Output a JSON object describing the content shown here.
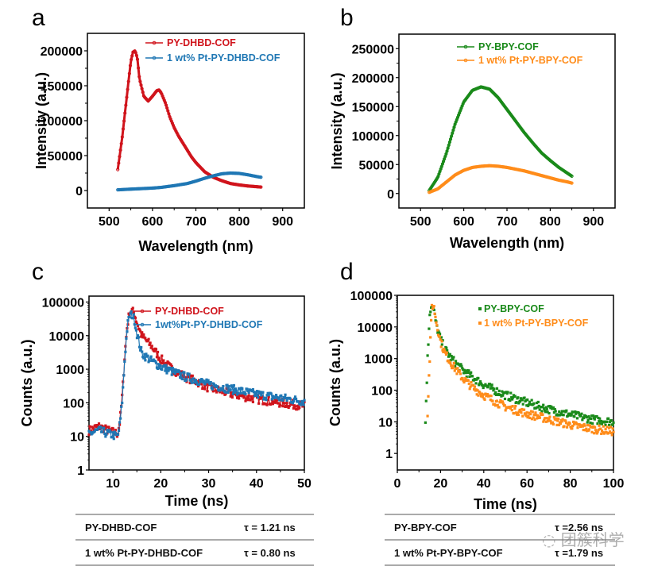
{
  "panels": {
    "a": {
      "letter": "a"
    },
    "b": {
      "letter": "b"
    },
    "c": {
      "letter": "c"
    },
    "d": {
      "letter": "d"
    }
  },
  "chart_data": [
    {
      "id": "a",
      "type": "line",
      "title": "",
      "xlabel": "Wavelength (nm)",
      "ylabel": "Intensity (a.u.)",
      "xlim": [
        450,
        950
      ],
      "ylim": [
        -25000,
        225000
      ],
      "xticks": [
        500,
        600,
        700,
        800,
        900
      ],
      "xtick_labels": [
        "500",
        "600",
        "700",
        "800",
        "900"
      ],
      "yticks": [
        0,
        50000,
        100000,
        150000,
        200000
      ],
      "ytick_labels": [
        "0",
        "50000",
        "100000",
        "150000",
        "200000"
      ],
      "legend_position": "top-right",
      "series": [
        {
          "name": "PY-DHBD-COF",
          "color": "#d0141c",
          "x": [
            520,
            530,
            540,
            550,
            555,
            560,
            565,
            570,
            580,
            590,
            600,
            610,
            615,
            620,
            630,
            640,
            650,
            660,
            670,
            680,
            690,
            700,
            720,
            740,
            760,
            780,
            800,
            820,
            840,
            850
          ],
          "y": [
            30000,
            75000,
            130000,
            185000,
            198000,
            200000,
            190000,
            160000,
            135000,
            128000,
            135000,
            143000,
            144000,
            140000,
            125000,
            105000,
            90000,
            78000,
            68000,
            58000,
            48000,
            40000,
            27000,
            19000,
            14000,
            10000,
            8000,
            6500,
            5500,
            5000
          ]
        },
        {
          "name": "1 wt% Pt-PY-DHBD-COF",
          "color": "#1f77b4",
          "x": [
            520,
            550,
            600,
            620,
            650,
            680,
            700,
            720,
            740,
            760,
            780,
            800,
            820,
            840,
            850
          ],
          "y": [
            1000,
            2000,
            3500,
            4500,
            7000,
            10000,
            13500,
            17500,
            21000,
            24000,
            25000,
            24500,
            22500,
            20000,
            19000
          ]
        }
      ]
    },
    {
      "id": "b",
      "type": "line",
      "title": "",
      "xlabel": "Wavelength (nm)",
      "ylabel": "Intensity (a.u.)",
      "xlim": [
        450,
        950
      ],
      "ylim": [
        -25000,
        275000
      ],
      "xticks": [
        500,
        600,
        700,
        800,
        900
      ],
      "xtick_labels": [
        "500",
        "600",
        "700",
        "800",
        "900"
      ],
      "yticks": [
        0,
        50000,
        100000,
        150000,
        200000,
        250000
      ],
      "ytick_labels": [
        "0",
        "50000",
        "100000",
        "150000",
        "200000",
        "250000"
      ],
      "legend_position": "top-right",
      "series": [
        {
          "name": "PY-BPY-COF",
          "color": "#1a8a1a",
          "x": [
            520,
            540,
            560,
            580,
            600,
            620,
            640,
            660,
            680,
            700,
            720,
            740,
            760,
            780,
            800,
            820,
            840,
            850
          ],
          "y": [
            5000,
            28000,
            70000,
            120000,
            158000,
            178000,
            184000,
            180000,
            165000,
            145000,
            125000,
            105000,
            87000,
            70000,
            57000,
            45000,
            35000,
            30000
          ]
        },
        {
          "name": "1 wt% Pt-PY-BPY-COF",
          "color": "#ff8c1a",
          "x": [
            520,
            540,
            560,
            580,
            600,
            620,
            640,
            660,
            680,
            700,
            720,
            740,
            760,
            780,
            800,
            820,
            840,
            850
          ],
          "y": [
            2000,
            8000,
            20000,
            32000,
            40000,
            45000,
            47000,
            48000,
            47000,
            45000,
            42000,
            39000,
            35000,
            31000,
            27000,
            23000,
            20000,
            18000
          ]
        }
      ]
    },
    {
      "id": "c",
      "type": "line",
      "title": "",
      "xlabel": "Time (ns)",
      "ylabel": "Counts (a.u.)",
      "xscale": "linear",
      "yscale": "log",
      "xlim": [
        5,
        50
      ],
      "ylim": [
        1,
        150000
      ],
      "xticks": [
        10,
        20,
        30,
        40,
        50
      ],
      "xtick_labels": [
        "10",
        "20",
        "30",
        "40",
        "50"
      ],
      "yticks": [
        1,
        10,
        100,
        1000,
        10000,
        100000
      ],
      "ytick_labels": [
        "1",
        "10",
        "100",
        "1000",
        "10000",
        "100000"
      ],
      "legend_position": "top-right",
      "series": [
        {
          "name": "PY-DHBD-COF",
          "color": "#d0141c",
          "x": [
            5,
            7,
            9,
            11,
            11.5,
            12,
            12.5,
            13,
            13.5,
            14,
            14.5,
            15,
            16,
            18,
            20,
            22,
            25,
            28,
            30,
            35,
            40,
            45,
            50
          ],
          "y": [
            15,
            20,
            15,
            12,
            30,
            200,
            3000,
            20000,
            50000,
            55000,
            45000,
            25000,
            10000,
            5000,
            2000,
            1100,
            600,
            400,
            280,
            180,
            130,
            100,
            80
          ]
        },
        {
          "name": "1wt%Pt-PY-DHBD-COF",
          "color": "#1f77b4",
          "x": [
            5,
            7,
            9,
            11,
            11.5,
            12,
            12.5,
            13,
            13.5,
            14,
            14.5,
            15,
            16,
            18,
            20,
            22,
            25,
            28,
            30,
            35,
            40,
            45,
            50
          ],
          "y": [
            12,
            15,
            12,
            10,
            25,
            150,
            2500,
            18000,
            40000,
            42000,
            30000,
            12000,
            3000,
            1800,
            1200,
            900,
            600,
            450,
            350,
            250,
            180,
            140,
            110
          ]
        }
      ]
    },
    {
      "id": "d",
      "type": "scatter",
      "title": "",
      "xlabel": "Time (ns)",
      "ylabel": "Counts (a.u.)",
      "xscale": "linear",
      "yscale": "log",
      "xlim": [
        0,
        100
      ],
      "ylim": [
        0.3,
        100000
      ],
      "xticks": [
        0,
        20,
        40,
        60,
        80,
        100
      ],
      "xtick_labels": [
        "0",
        "20",
        "40",
        "60",
        "80",
        "100"
      ],
      "yticks": [
        1,
        10,
        100,
        1000,
        10000,
        100000
      ],
      "ytick_labels": [
        "1",
        "10",
        "100",
        "1000",
        "10000",
        "100000"
      ],
      "legend_position": "top-right",
      "series": [
        {
          "name": "PY-BPY-COF",
          "color": "#1a8a1a",
          "x": [
            13,
            14,
            15,
            16,
            17,
            18,
            20,
            22,
            25,
            30,
            35,
            40,
            45,
            50,
            60,
            70,
            80,
            90,
            100
          ],
          "y": [
            10,
            1000,
            30000,
            50000,
            30000,
            12000,
            4000,
            2000,
            1000,
            450,
            250,
            150,
            100,
            70,
            40,
            25,
            17,
            12,
            10
          ]
        },
        {
          "name": "1 wt% Pt-PY-BPY-COF",
          "color": "#ff8c1a",
          "x": [
            14,
            15,
            16,
            17,
            18,
            20,
            22,
            25,
            30,
            35,
            40,
            45,
            50,
            60,
            70,
            80,
            90,
            100
          ],
          "y": [
            20,
            1000,
            50000,
            40000,
            15000,
            3500,
            1500,
            700,
            250,
            120,
            70,
            45,
            30,
            18,
            12,
            8,
            6,
            5
          ]
        }
      ]
    }
  ],
  "tables": {
    "left": {
      "rows": [
        {
          "name": "PY-DHBD-COF",
          "tau": "τ = 1.21 ns"
        },
        {
          "name": "1 wt% Pt-PY-DHBD-COF",
          "tau": "τ = 0.80 ns"
        }
      ]
    },
    "right": {
      "rows": [
        {
          "name": "PY-BPY-COF",
          "tau": "τ =2.56 ns"
        },
        {
          "name": "1 wt% Pt-PY-BPY-COF",
          "tau": "τ =1.79 ns"
        }
      ]
    }
  },
  "watermark": {
    "text": "◌ 团簇科学"
  }
}
